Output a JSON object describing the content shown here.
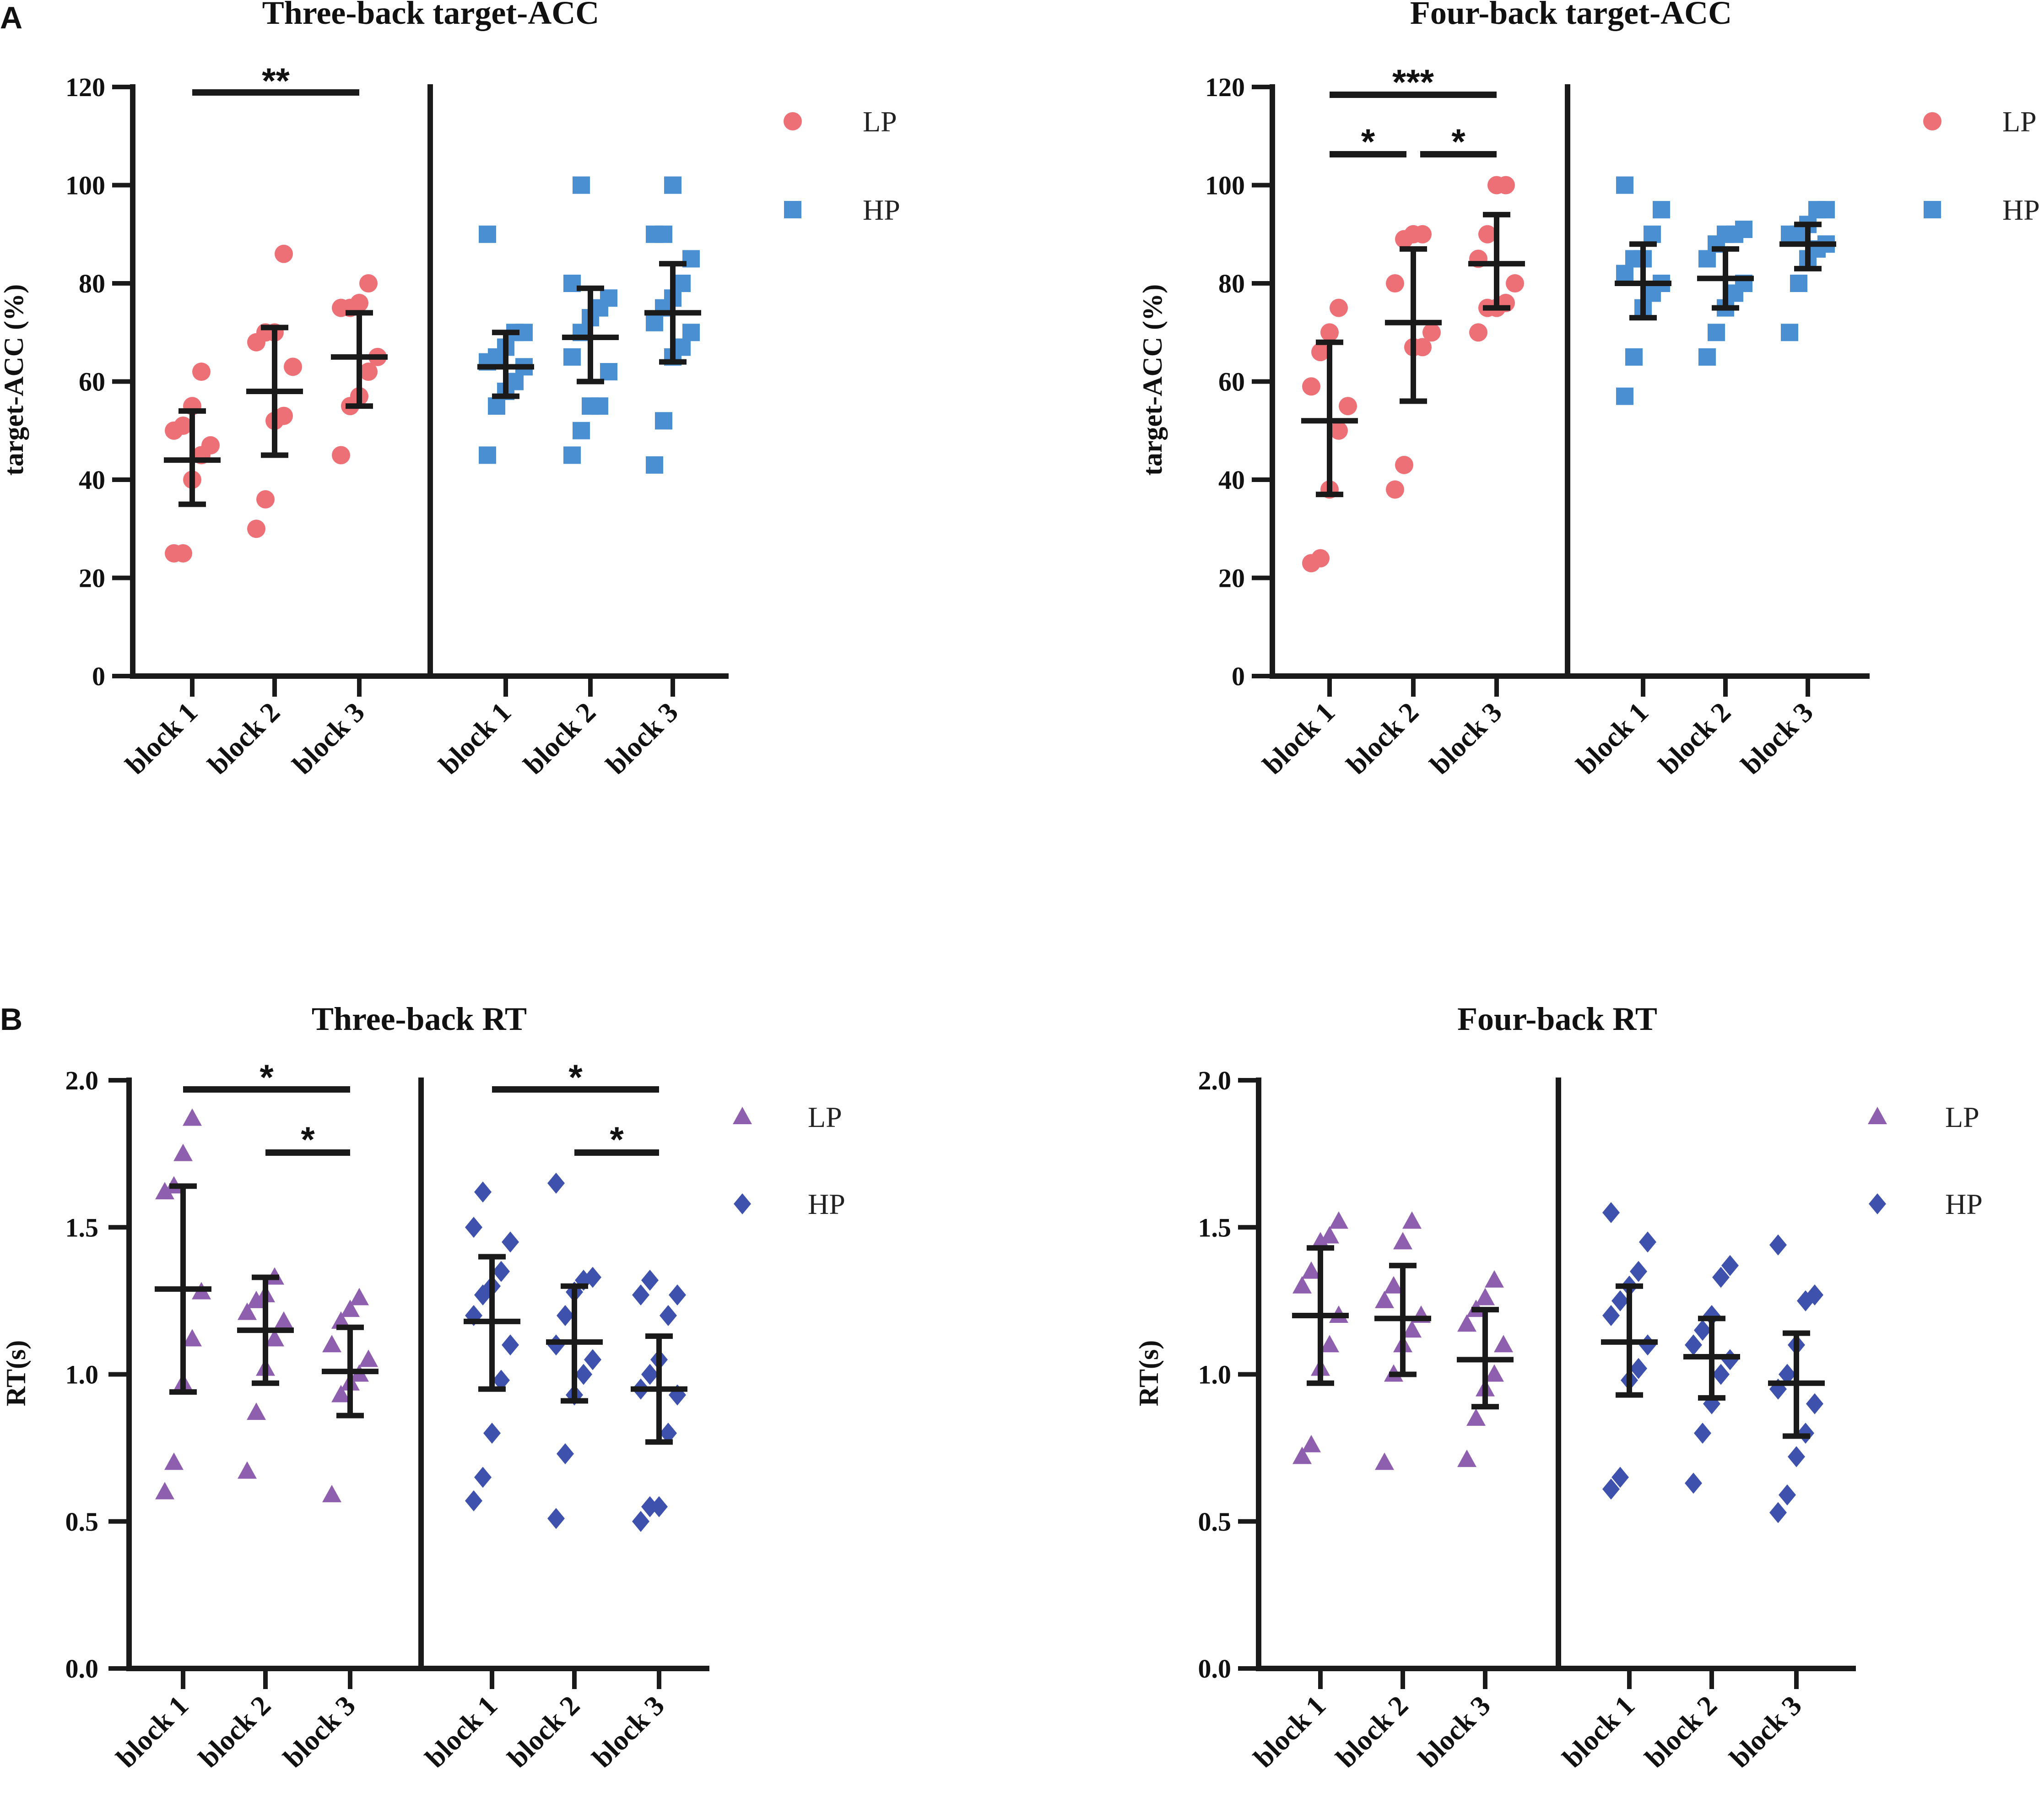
{
  "panel_labels": [
    "A",
    "B"
  ],
  "colors": {
    "lp_acc": "#ec7076",
    "hp_acc": "#4a8fd1",
    "lp_rt": "#8e5fae",
    "hp_rt": "#3e52ad",
    "axis": "#1a1a1a"
  },
  "legend": [
    "LP",
    "HP"
  ],
  "chart_data": [
    {
      "type": "scatter",
      "title": "Three-back target-ACC",
      "ylabel": "target-ACC (%)",
      "ylim": [
        0,
        120
      ],
      "yticks": [
        "0",
        "20",
        "40",
        "60",
        "80",
        "100",
        "120"
      ],
      "categories": [
        "block 1",
        "block 2",
        "block 3",
        "block 1",
        "block 2",
        "block 3"
      ],
      "marker": "circle-square",
      "series": [
        {
          "name": "LP",
          "points": [
            [
              25,
              25,
              40,
              45,
              47,
              50,
              51,
              55,
              62
            ],
            [
              30,
              36,
              52,
              53,
              63,
              68,
              70,
              70,
              86
            ],
            [
              45,
              55,
              57,
              62,
              65,
              75,
              75,
              76,
              80
            ]
          ],
          "mean": [
            44,
            58,
            65
          ],
          "err": [
            [
              35,
              54
            ],
            [
              45,
              71
            ],
            [
              55,
              74
            ]
          ]
        },
        {
          "name": "HP",
          "points": [
            [
              45,
              55,
              58,
              60,
              63,
              64,
              65,
              67,
              70,
              70,
              90
            ],
            [
              45,
              50,
              55,
              55,
              62,
              65,
              70,
              73,
              75,
              77,
              80,
              100
            ],
            [
              43,
              52,
              65,
              67,
              70,
              72,
              75,
              77,
              80,
              85,
              90,
              90,
              100
            ]
          ],
          "mean": [
            63,
            69,
            74
          ],
          "err": [
            [
              57,
              70
            ],
            [
              60,
              79
            ],
            [
              64,
              84
            ]
          ]
        }
      ],
      "significance": [
        {
          "label": "**",
          "from": 0,
          "to": 2
        }
      ]
    },
    {
      "type": "scatter",
      "title": "Four-back target-ACC",
      "ylabel": "target-ACC (%)",
      "ylim": [
        0,
        120
      ],
      "yticks": [
        "0",
        "20",
        "40",
        "60",
        "80",
        "100",
        "120"
      ],
      "categories": [
        "block 1",
        "block 2",
        "block 3",
        "block 1",
        "block 2",
        "block 3"
      ],
      "marker": "circle-square",
      "series": [
        {
          "name": "LP",
          "points": [
            [
              23,
              24,
              38,
              50,
              55,
              59,
              66,
              70,
              75
            ],
            [
              38,
              43,
              67,
              67,
              70,
              80,
              89,
              90,
              90
            ],
            [
              70,
              75,
              75,
              76,
              80,
              85,
              90,
              100,
              100
            ]
          ],
          "mean": [
            52,
            72,
            84
          ],
          "err": [
            [
              37,
              68
            ],
            [
              56,
              87
            ],
            [
              75,
              94
            ]
          ]
        },
        {
          "name": "HP",
          "points": [
            [
              57,
              65,
              75,
              78,
              80,
              82,
              85,
              85,
              90,
              95,
              100
            ],
            [
              65,
              70,
              75,
              78,
              80,
              85,
              88,
              90,
              90,
              91
            ],
            [
              70,
              80,
              85,
              87,
              88,
              90,
              90,
              92,
              95,
              95
            ]
          ],
          "mean": [
            80,
            81,
            88
          ],
          "err": [
            [
              73,
              88
            ],
            [
              75,
              87
            ],
            [
              83,
              92
            ]
          ]
        }
      ],
      "significance": [
        {
          "label": "***",
          "from": 0,
          "to": 2
        },
        {
          "label": "*",
          "from": 0,
          "to": 1
        },
        {
          "label": "*",
          "from": 1,
          "to": 2
        }
      ]
    },
    {
      "type": "scatter",
      "title": "Three-back RT",
      "ylabel": "RT(s)",
      "ylim": [
        0,
        2.0
      ],
      "yticks": [
        "0.0",
        "0.5",
        "1.0",
        "1.5",
        "2.0"
      ],
      "categories": [
        "block 1",
        "block 2",
        "block 3",
        "block 1",
        "block 2",
        "block 3"
      ],
      "marker": "triangle-diamond",
      "series": [
        {
          "name": "LP",
          "points": [
            [
              0.6,
              0.7,
              0.97,
              1.12,
              1.28,
              1.62,
              1.64,
              1.75,
              1.87
            ],
            [
              0.67,
              0.87,
              1.02,
              1.12,
              1.18,
              1.21,
              1.25,
              1.27,
              1.33
            ],
            [
              0.59,
              0.93,
              0.97,
              1.0,
              1.05,
              1.1,
              1.18,
              1.22,
              1.26
            ]
          ],
          "mean": [
            1.29,
            1.15,
            1.01
          ],
          "err": [
            [
              0.94,
              1.64
            ],
            [
              0.97,
              1.33
            ],
            [
              0.86,
              1.16
            ]
          ]
        },
        {
          "name": "HP",
          "points": [
            [
              0.57,
              0.65,
              0.8,
              0.98,
              1.1,
              1.2,
              1.27,
              1.3,
              1.35,
              1.45,
              1.5,
              1.62
            ],
            [
              0.51,
              0.73,
              0.93,
              1.0,
              1.05,
              1.1,
              1.2,
              1.28,
              1.32,
              1.33,
              1.65
            ],
            [
              0.5,
              0.55,
              0.55,
              0.8,
              0.93,
              0.95,
              1.0,
              1.05,
              1.2,
              1.27,
              1.27,
              1.32
            ]
          ],
          "mean": [
            1.18,
            1.11,
            0.95
          ],
          "err": [
            [
              0.95,
              1.4
            ],
            [
              0.91,
              1.3
            ],
            [
              0.77,
              1.13
            ]
          ]
        }
      ],
      "significance": [
        {
          "label": "*",
          "from": 0,
          "to": 2
        },
        {
          "label": "*",
          "from": 1,
          "to": 2
        },
        {
          "label": "*",
          "from": 3,
          "to": 5
        },
        {
          "label": "*",
          "from": 4,
          "to": 5
        }
      ]
    },
    {
      "type": "scatter",
      "title": "Four-back RT",
      "ylabel": "RT(s)",
      "ylim": [
        0,
        2.0
      ],
      "yticks": [
        "0.0",
        "0.5",
        "1.0",
        "1.5",
        "2.0"
      ],
      "categories": [
        "block 1",
        "block 2",
        "block 3",
        "block 1",
        "block 2",
        "block 3"
      ],
      "marker": "triangle-diamond",
      "series": [
        {
          "name": "LP",
          "points": [
            [
              0.72,
              0.76,
              1.02,
              1.1,
              1.2,
              1.3,
              1.35,
              1.45,
              1.47,
              1.52
            ],
            [
              0.7,
              1.0,
              1.1,
              1.15,
              1.2,
              1.25,
              1.3,
              1.45,
              1.52
            ],
            [
              0.71,
              0.85,
              0.95,
              1.0,
              1.1,
              1.17,
              1.22,
              1.26,
              1.32
            ]
          ],
          "mean": [
            1.2,
            1.19,
            1.05
          ],
          "err": [
            [
              0.97,
              1.43
            ],
            [
              1.0,
              1.37
            ],
            [
              0.89,
              1.22
            ]
          ]
        },
        {
          "name": "HP",
          "points": [
            [
              0.61,
              0.65,
              0.98,
              1.02,
              1.1,
              1.2,
              1.25,
              1.3,
              1.35,
              1.45,
              1.55
            ],
            [
              0.63,
              0.8,
              0.9,
              1.0,
              1.05,
              1.1,
              1.15,
              1.2,
              1.33,
              1.37
            ],
            [
              0.53,
              0.59,
              0.72,
              0.8,
              0.9,
              0.95,
              1.0,
              1.1,
              1.25,
              1.27,
              1.44
            ]
          ],
          "mean": [
            1.11,
            1.06,
            0.97
          ],
          "err": [
            [
              0.93,
              1.3
            ],
            [
              0.92,
              1.19
            ],
            [
              0.79,
              1.14
            ]
          ]
        }
      ],
      "significance": []
    }
  ]
}
